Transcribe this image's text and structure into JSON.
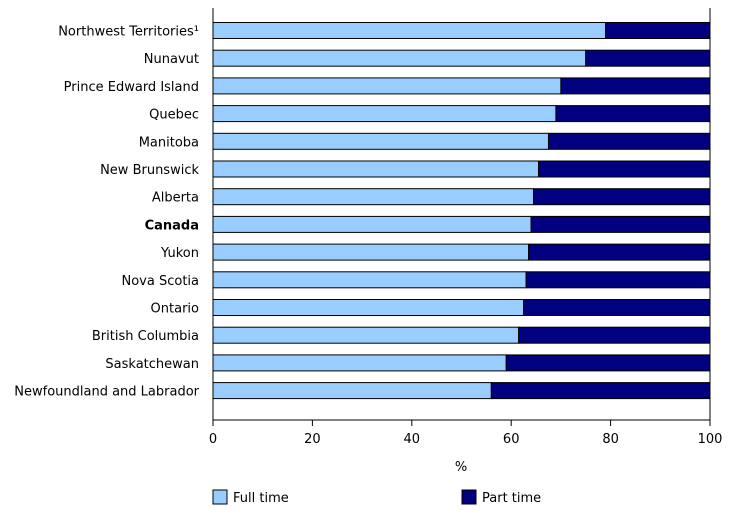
{
  "chart_data": {
    "type": "bar",
    "orientation": "horizontal",
    "stacked": true,
    "categories": [
      "Northwest Territories¹",
      "Nunavut",
      "Prince Edward Island",
      "Quebec",
      "Manitoba",
      "New Brunswick",
      "Alberta",
      "Canada",
      "Yukon",
      "Nova Scotia",
      "Ontario",
      "British Columbia",
      "Saskatchewan",
      "Newfoundland and Labrador"
    ],
    "bold_categories": [
      "Canada"
    ],
    "series": [
      {
        "name": "Full time",
        "color": "#99ccff",
        "values": [
          79,
          75,
          70,
          69,
          67.5,
          65.5,
          64.5,
          64,
          63.5,
          63,
          62.5,
          61.5,
          59,
          56
        ]
      },
      {
        "name": "Part time",
        "color": "#000080",
        "values": [
          21,
          25,
          30,
          31,
          32.5,
          34.5,
          35.5,
          36,
          36.5,
          37,
          37.5,
          38.5,
          41,
          44
        ]
      }
    ],
    "xlabel": "%",
    "xlim": [
      0,
      100
    ],
    "xticks": [
      0,
      20,
      40,
      60,
      80,
      100
    ],
    "legend_position": "bottom",
    "grid": false
  }
}
